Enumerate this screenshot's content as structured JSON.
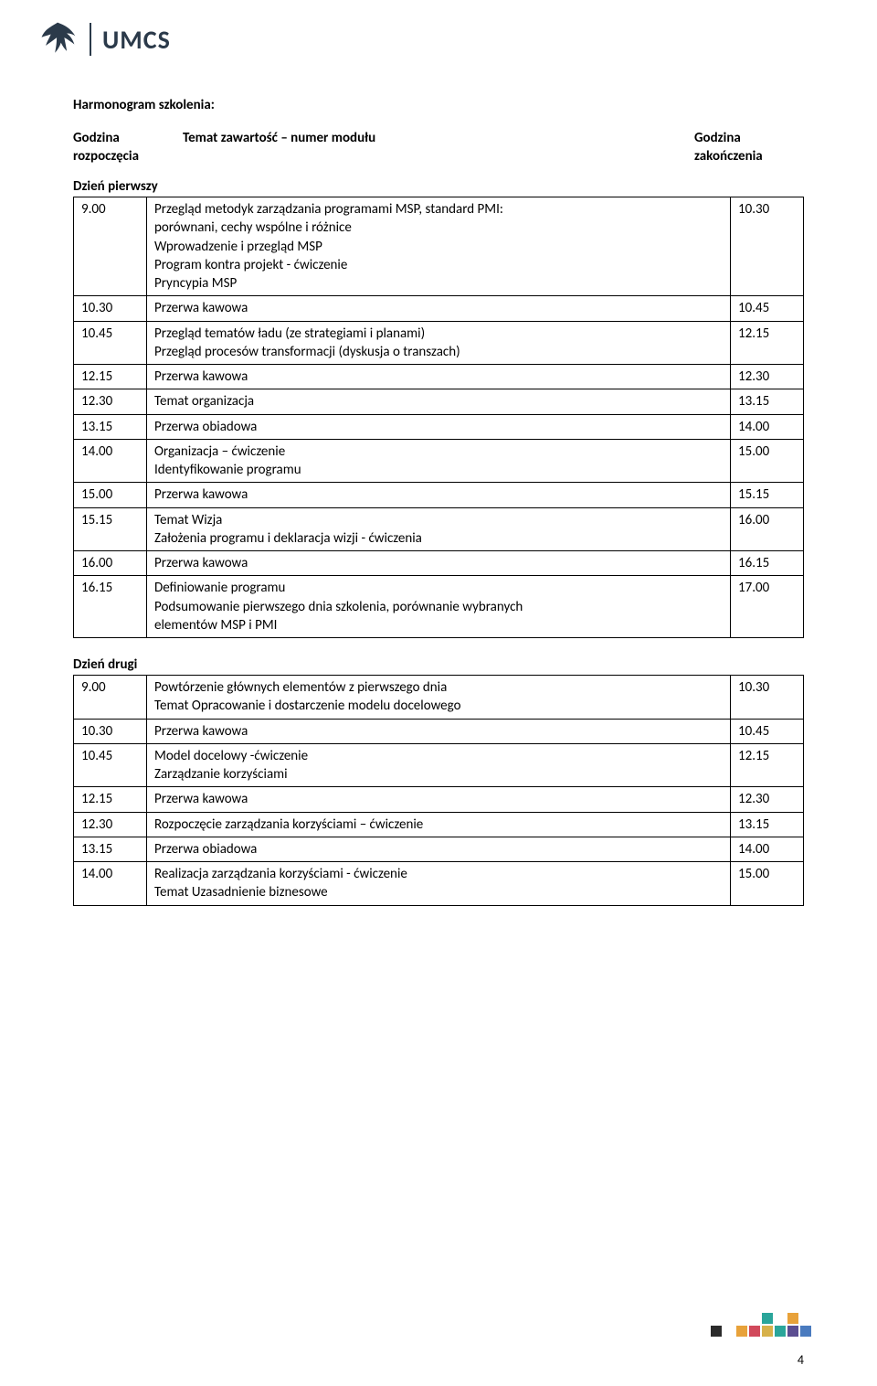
{
  "logo": {
    "text": "UMCS",
    "color": "#2b3a4a"
  },
  "title": "Harmonogram szkolenia:",
  "header": {
    "left_l1": "Godzina",
    "left_l2": "rozpoczęcia",
    "mid": "Temat zawartość – numer modułu",
    "right_l1": "Godzina",
    "right_l2": "zakończenia"
  },
  "day1_label": "Dzień pierwszy",
  "day1": [
    {
      "t": "9.00",
      "lines": [
        "Przegląd metodyk zarządzania programami MSP, standard PMI:",
        "porównani, cechy wspólne i różnice",
        "Wprowadzenie i przegląd MSP",
        "Program kontra projekt - ćwiczenie",
        "Pryncypia MSP"
      ],
      "e": "10.30"
    },
    {
      "t": "10.30",
      "lines": [
        "Przerwa kawowa"
      ],
      "e": "10.45"
    },
    {
      "t": "10.45",
      "lines": [
        "Przegląd tematów ładu (ze strategiami i planami)",
        "Przegląd procesów transformacji (dyskusja o transzach)"
      ],
      "e": "12.15"
    },
    {
      "t": "12.15",
      "lines": [
        "Przerwa kawowa"
      ],
      "e": "12.30"
    },
    {
      "t": "12.30",
      "lines": [
        "Temat organizacja"
      ],
      "e": "13.15"
    },
    {
      "t": "13.15",
      "lines": [
        "Przerwa obiadowa"
      ],
      "e": "14.00"
    },
    {
      "t": "14.00",
      "lines": [
        "Organizacja – ćwiczenie",
        "Identyfikowanie programu"
      ],
      "e": "15.00"
    },
    {
      "t": "15.00",
      "lines": [
        "Przerwa kawowa"
      ],
      "e": "15.15"
    },
    {
      "t": "15.15",
      "lines": [
        "Temat Wizja",
        "Założenia programu i deklaracja wizji - ćwiczenia"
      ],
      "e": "16.00"
    },
    {
      "t": "16.00",
      "lines": [
        "Przerwa kawowa"
      ],
      "e": "16.15"
    },
    {
      "t": "16.15",
      "lines": [
        "Definiowanie programu",
        "Podsumowanie pierwszego dnia szkolenia, porównanie wybranych",
        "elementów MSP i PMI"
      ],
      "e": "17.00"
    }
  ],
  "day2_label": "Dzień drugi",
  "day2": [
    {
      "t": "9.00",
      "lines": [
        "Powtórzenie głównych elementów z pierwszego dnia",
        "Temat Opracowanie i dostarczenie modelu docelowego"
      ],
      "e": "10.30"
    },
    {
      "t": "10.30",
      "lines": [
        "Przerwa kawowa"
      ],
      "e": "10.45"
    },
    {
      "t": "10.45",
      "lines": [
        "Model docelowy -ćwiczenie",
        "Zarządzanie korzyściami"
      ],
      "e": "12.15"
    },
    {
      "t": "12.15",
      "lines": [
        "Przerwa kawowa"
      ],
      "e": "12.30"
    },
    {
      "t": "12.30",
      "lines": [
        "Rozpoczęcie zarządzania korzyściami – ćwiczenie"
      ],
      "e": "13.15"
    },
    {
      "t": "13.15",
      "lines": [
        "Przerwa obiadowa"
      ],
      "e": "14.00"
    },
    {
      "t": "14.00",
      "lines": [
        "Realizacja zarządzania korzyściami - ćwiczenie",
        "Temat Uzasadnienie biznesowe"
      ],
      "e": "15.00"
    }
  ],
  "footer_colors": {
    "dark": "#2b2b2b",
    "orange": "#e8a23a",
    "red": "#d1495b",
    "teal": "#2aa59a",
    "gold": "#d7b14a",
    "purple": "#5b4e91",
    "blue": "#4a7bbf"
  },
  "page_number": "4"
}
